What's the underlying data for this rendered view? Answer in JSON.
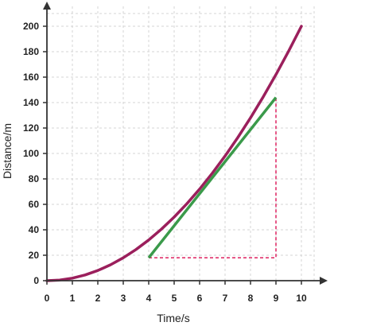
{
  "chart_data": {
    "type": "line",
    "xlabel": "Time/s",
    "ylabel": "Distance/m",
    "xlim": [
      0,
      10
    ],
    "ylim": [
      0,
      200
    ],
    "xticks": [
      0,
      1,
      2,
      3,
      4,
      5,
      6,
      7,
      8,
      9,
      10
    ],
    "yticks": [
      0,
      20,
      40,
      60,
      80,
      100,
      120,
      140,
      160,
      180,
      200
    ],
    "grid": true,
    "series": [
      {
        "kind": "curve",
        "color": "#9b1f5c",
        "x": [
          0,
          0.5,
          1,
          1.5,
          2,
          2.5,
          3,
          3.5,
          4,
          4.5,
          5,
          5.5,
          6,
          6.5,
          7,
          7.5,
          8,
          8.5,
          9,
          9.5,
          10
        ],
        "y": [
          0,
          0.5,
          2,
          4.5,
          8,
          12.5,
          18,
          24.5,
          32,
          40.5,
          50,
          60.5,
          72,
          84.5,
          98,
          112.5,
          128,
          144.5,
          162,
          180.5,
          200
        ]
      },
      {
        "kind": "tangent",
        "color": "#3a9a4a",
        "x": [
          4,
          9
        ],
        "y": [
          18,
          144
        ]
      }
    ],
    "gradient_triangle": {
      "color": "#e0306a",
      "from": [
        4,
        18
      ],
      "corner": [
        9,
        18
      ],
      "to": [
        9,
        144
      ]
    }
  }
}
